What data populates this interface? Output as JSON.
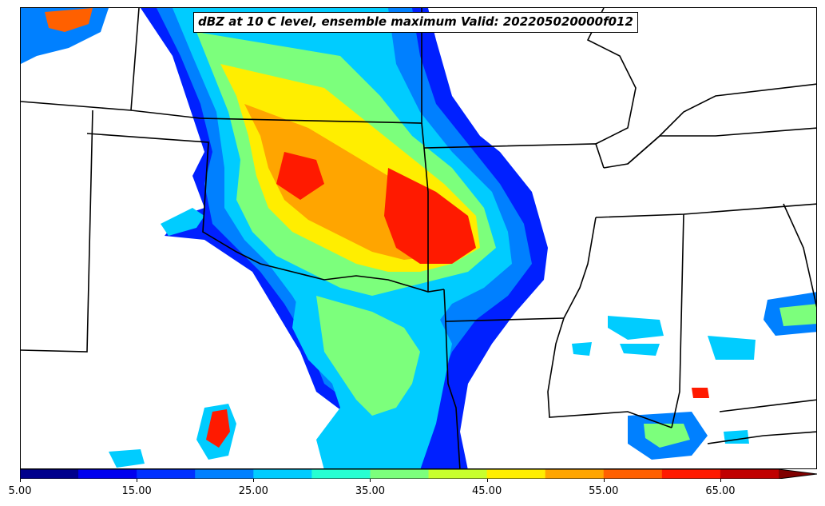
{
  "title": "dBZ at 10 C level, ensemble maximum Valid: 202205020000f012",
  "colorbar": {
    "min": 5,
    "max": 70,
    "step": 5,
    "extend": "max",
    "colors": [
      "#00008c",
      "#0000ee",
      "#0030ff",
      "#0080ff",
      "#00ccff",
      "#26ffd2",
      "#7cff7c",
      "#c8ff2e",
      "#ffee00",
      "#ffa500",
      "#ff6000",
      "#ff1a00",
      "#c00000",
      "#800000"
    ],
    "tick_labels": [
      "5.00",
      "15.00",
      "25.00",
      "35.00",
      "45.00",
      "55.00",
      "65.00"
    ],
    "tick_values": [
      5,
      15,
      25,
      35,
      45,
      55,
      65
    ]
  }
}
